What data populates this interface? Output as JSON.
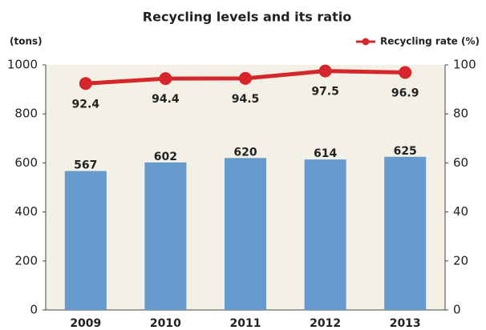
{
  "chart_data": {
    "type": "bar-line",
    "title": "Recycling levels and its ratio",
    "y_label": "(tons)",
    "categories": [
      "2009",
      "2010",
      "2011",
      "2012",
      "2013"
    ],
    "series": [
      {
        "type": "bar",
        "color": "#6699cc",
        "values": [
          567,
          602,
          620,
          614,
          625
        ]
      },
      {
        "type": "line",
        "name": "Recycling rate (%)",
        "color": "#d7262b",
        "axis": "y2",
        "values": [
          92.4,
          94.4,
          94.5,
          97.5,
          96.9
        ]
      }
    ],
    "ylim": [
      0,
      1000
    ],
    "yticks": [
      0,
      200,
      400,
      600,
      800,
      1000
    ],
    "y2lim": [
      0,
      100
    ],
    "y2ticks": [
      0,
      20,
      40,
      60,
      80,
      100
    ],
    "legend": "top-right"
  }
}
